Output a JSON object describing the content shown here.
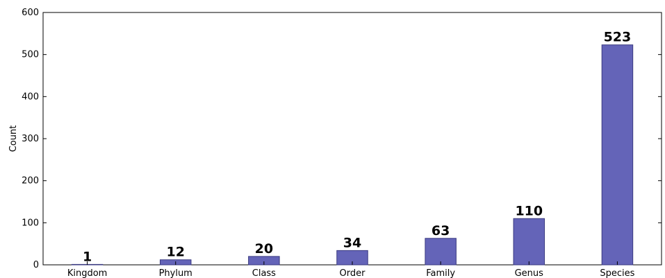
{
  "chart_data": {
    "type": "bar",
    "categories": [
      "Kingdom",
      "Phylum",
      "Class",
      "Order",
      "Family",
      "Genus",
      "Species"
    ],
    "values": [
      1,
      12,
      20,
      34,
      63,
      110,
      523
    ],
    "data_labels": [
      "1",
      "12",
      "20",
      "34",
      "63",
      "110",
      "523"
    ],
    "xlabel": "",
    "ylabel": "Count",
    "ylim": [
      0,
      600
    ],
    "yticks": [
      0,
      100,
      200,
      300,
      400,
      500,
      600
    ],
    "grid": false,
    "bar_color": "#6464b8",
    "bar_edge_color": "#3a3a80"
  }
}
